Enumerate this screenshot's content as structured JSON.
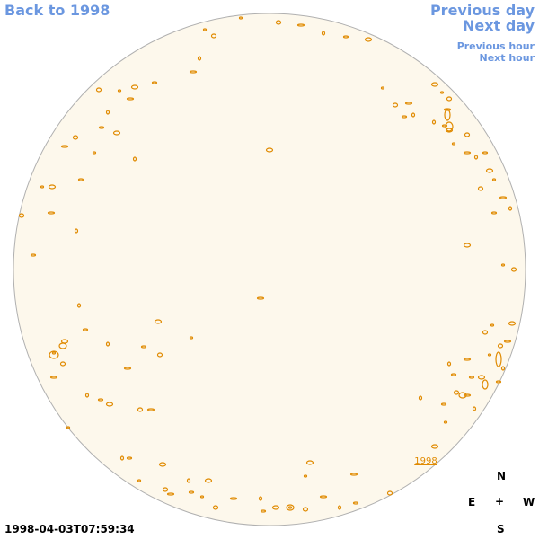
{
  "nav": {
    "back_label": "Back to 1998",
    "previous_day": "Previous day",
    "next_day": "Next day",
    "previous_hour": "Previous hour",
    "next_hour": "Next hour"
  },
  "timestamp": "1998-04-03T07:59:34",
  "year_marker": "1998",
  "compass": {
    "north": "N",
    "east": "E",
    "center": "+",
    "west": "W",
    "south": "S"
  },
  "colors": {
    "disk_fill": "#fdf8ec",
    "disk_stroke": "#b0b0b0",
    "contour": "#e08a00",
    "link": "#6b97e0"
  }
}
